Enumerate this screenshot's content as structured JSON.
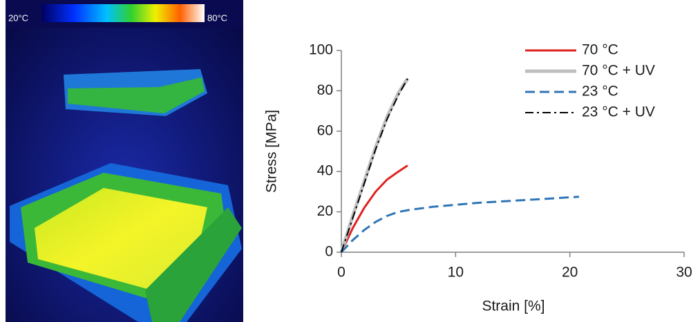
{
  "image": {
    "scale_min_label": "20°C",
    "scale_max_label": "80°C"
  },
  "chart_data": {
    "type": "line",
    "x_label": "Strain [%]",
    "y_label": "Stress [MPa]",
    "xlim": [
      0,
      30
    ],
    "xticks": [
      0,
      10,
      20,
      30
    ],
    "ylim": [
      0,
      100
    ],
    "yticks": [
      0,
      20,
      40,
      60,
      80,
      100
    ],
    "legend": "upper right",
    "series": [
      {
        "name": "70 °C",
        "color": "#e0211f",
        "dash": "solid",
        "width": 3,
        "x": [
          0,
          1,
          2,
          3,
          4,
          5,
          5.8
        ],
        "values": [
          0,
          12,
          22,
          30,
          36,
          40,
          43
        ]
      },
      {
        "name": "70 °C + UV",
        "color": "#bfbfbf",
        "dash": "solid",
        "width": 5,
        "x": [
          0,
          1,
          2,
          3,
          4,
          5,
          5.8
        ],
        "values": [
          0,
          18,
          35,
          52,
          67,
          79,
          86
        ]
      },
      {
        "name": "23 °C",
        "color": "#2e75b6",
        "dash": "dashed",
        "width": 3,
        "x": [
          0,
          1,
          2,
          3,
          4,
          5,
          6,
          8,
          10,
          12,
          15,
          18,
          20.8
        ],
        "values": [
          0,
          6,
          11,
          15,
          18,
          20,
          21,
          22.5,
          23.5,
          24.5,
          25.5,
          26.5,
          27.5
        ]
      },
      {
        "name": "23 °C + UV",
        "color": "#000000",
        "dash": "dashdot",
        "width": 2,
        "x": [
          0,
          1,
          2,
          3,
          4,
          5,
          5.8
        ],
        "values": [
          0,
          17,
          34,
          51,
          66,
          78,
          86
        ]
      }
    ]
  }
}
